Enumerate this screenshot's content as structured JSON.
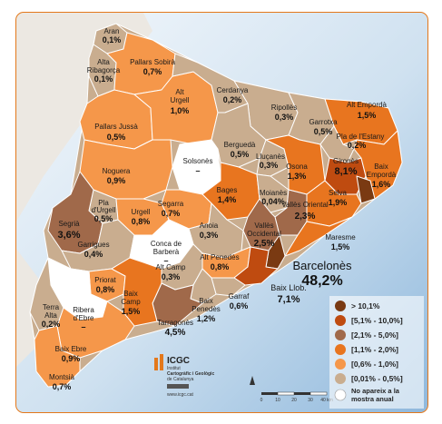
{
  "colors": {
    "sea_top": "#eaf2f9",
    "sea_bottom": "#8fb8dc",
    "land_outside": "#e6e2dc",
    "class1": "#7a3a12",
    "class2": "#bf4b10",
    "class3": "#a0694a",
    "class4": "#e8751f",
    "class5": "#f5974a",
    "class6": "#c9ad8f",
    "class7": "#ffffff",
    "frame": "#e3781b"
  },
  "legend": [
    {
      "label": "> 10,1%",
      "class": "class1"
    },
    {
      "label": "[5,1% - 10,0%]",
      "class": "class2"
    },
    {
      "label": "[2,1% - 5,0%]",
      "class": "class3"
    },
    {
      "label": "[1,1% - 2,0%]",
      "class": "class4"
    },
    {
      "label": "[0,6% - 1,0%]",
      "class": "class5"
    },
    {
      "label": "[0,01% - 0,5%]",
      "class": "class6"
    },
    {
      "label": "No apareix a la",
      "label2": "mostra anual",
      "class": "class7"
    }
  ],
  "comarques": [
    {
      "name": "Aran",
      "value": "0,1%"
    },
    {
      "name": "Alta Ribagorça",
      "value": "0,1%"
    },
    {
      "name": "Pallars Sobirà",
      "value": "0,7%"
    },
    {
      "name": "Pallars Jussà",
      "value": "0,5%"
    },
    {
      "name": "Alt Urgell",
      "value": "1,0%"
    },
    {
      "name": "Cerdanya",
      "value": "0,2%"
    },
    {
      "name": "Ripollès",
      "value": "0,3%"
    },
    {
      "name": "Garrotxa",
      "value": "0,5%"
    },
    {
      "name": "Alt Empordà",
      "value": "1,5%"
    },
    {
      "name": "Pla de l'Estany",
      "value": "0,2%"
    },
    {
      "name": "Gironès",
      "value": "8,1%"
    },
    {
      "name": "Baix Empordà",
      "value": "1,6%"
    },
    {
      "name": "Solsonès",
      "value": "–"
    },
    {
      "name": "Berguedà",
      "value": "0,5%"
    },
    {
      "name": "Lluçanès",
      "value": "0,3%"
    },
    {
      "name": "Osona",
      "value": "1,3%"
    },
    {
      "name": "Selva",
      "value": "1,9%"
    },
    {
      "name": "Noguera",
      "value": "0,9%"
    },
    {
      "name": "Bages",
      "value": "1,4%"
    },
    {
      "name": "Moianès",
      "value": "0,04%"
    },
    {
      "name": "Vallès Oriental",
      "value": "2,3%"
    },
    {
      "name": "Vallès Occidental",
      "value": "2,5%"
    },
    {
      "name": "Maresme",
      "value": "1,5%"
    },
    {
      "name": "Segarra",
      "value": "0,7%"
    },
    {
      "name": "Pla d'Urgell",
      "value": "0,5%"
    },
    {
      "name": "Urgell",
      "value": "0,8%"
    },
    {
      "name": "Segrià",
      "value": "3,6%"
    },
    {
      "name": "Garrigues",
      "value": "0,4%"
    },
    {
      "name": "Anoia",
      "value": "0,3%"
    },
    {
      "name": "Conca de Barberà",
      "value": "–"
    },
    {
      "name": "Alt Penedès",
      "value": "0,8%"
    },
    {
      "name": "Alt Camp",
      "value": "0,3%"
    },
    {
      "name": "Barcelonès",
      "value": "48,2%"
    },
    {
      "name": "Baix Llob.",
      "value": "7,1%"
    },
    {
      "name": "Garraf",
      "value": "0,6%"
    },
    {
      "name": "Baix Penedès",
      "value": "1,2%"
    },
    {
      "name": "Tarragonès",
      "value": "4,5%"
    },
    {
      "name": "Priorat",
      "value": "0,8%"
    },
    {
      "name": "Baix Camp",
      "value": "1,5%"
    },
    {
      "name": "Ribera d'Ebre",
      "value": "–"
    },
    {
      "name": "Terra Alta",
      "value": "0,2%"
    },
    {
      "name": "Baix Ebre",
      "value": "0,9%"
    },
    {
      "name": "Montsià",
      "value": "0,7%"
    }
  ],
  "logo": {
    "brand": "ICGC",
    "line1": "Institut",
    "line2": "Cartogràfic i Geològic",
    "line3": "de Catalunya",
    "url": "www.icgc.cat"
  },
  "scale": {
    "t0": "0",
    "t1": "10",
    "t2": "20",
    "t3": "30",
    "t4": "40 km"
  }
}
